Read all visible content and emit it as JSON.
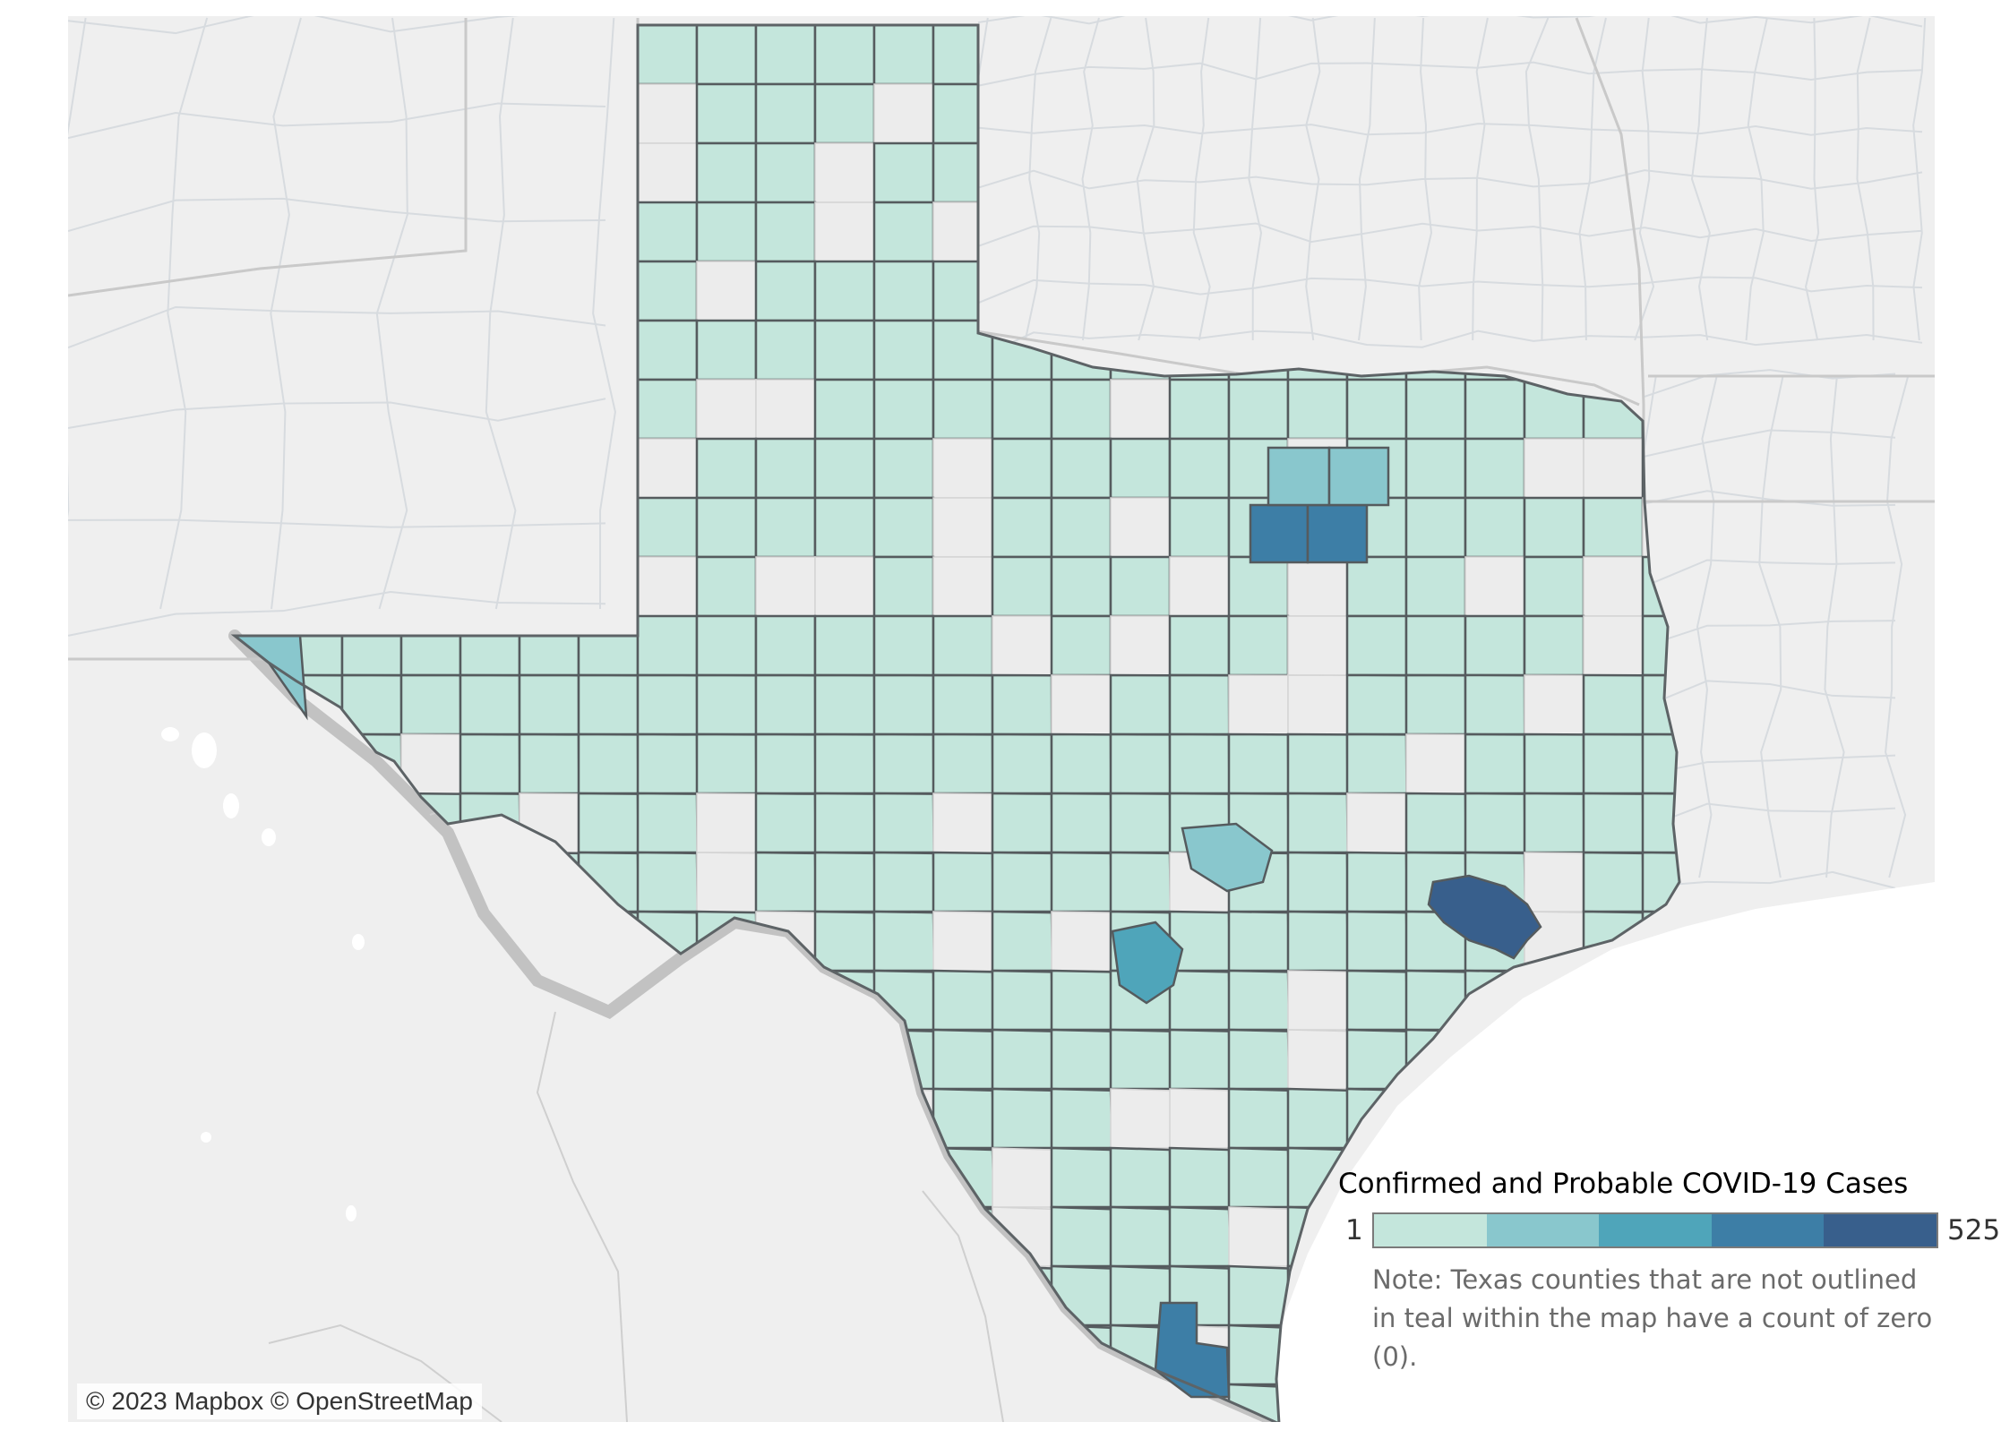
{
  "map": {
    "attribution": "© 2023 Mapbox © OpenStreetMap",
    "colors": {
      "background": "#efefef",
      "state_line": "#c9c9c9",
      "county_line": "#dcdcdc",
      "water": "#ffffff",
      "county_outline": "#555b5e",
      "zero_fill": "#ececec"
    }
  },
  "legend": {
    "title": "Confirmed and Probable COVID-19 Cases",
    "min_label": "1",
    "max_label": "525",
    "min": 1,
    "max": 525,
    "colors": [
      "#c4e6dc",
      "#89c7cd",
      "#4fa5ba",
      "#3d7ea6",
      "#385f8c"
    ],
    "note": "Note: Texas counties that are not outlined in teal within the map have a count of zero (0)."
  },
  "highlighted_counties": [
    {
      "level": 5,
      "description": "Houston area"
    },
    {
      "level": 4,
      "description": "Dallas–Fort Worth core"
    },
    {
      "level": 4,
      "description": "Rio Grande Valley"
    },
    {
      "level": 3,
      "description": "San Antonio area"
    },
    {
      "level": 2,
      "description": "Austin area"
    },
    {
      "level": 2,
      "description": "North Dallas suburbs"
    },
    {
      "level": 2,
      "description": "El Paso"
    }
  ]
}
